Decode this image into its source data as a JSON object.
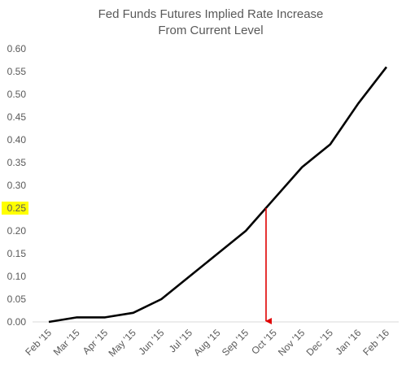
{
  "chart_data": {
    "type": "line",
    "title_line1": "Fed Funds Futures Implied Rate Increase",
    "title_line2": "From Current Level",
    "xlabel": "",
    "ylabel": "",
    "ylim": [
      0,
      0.6
    ],
    "y_ticks": [
      "0.00",
      "0.05",
      "0.10",
      "0.15",
      "0.20",
      "0.25",
      "0.30",
      "0.35",
      "0.40",
      "0.45",
      "0.50",
      "0.55",
      "0.60"
    ],
    "categories": [
      "Feb '15",
      "Mar '15",
      "Apr '15",
      "May '15",
      "Jun '15",
      "Jul '15",
      "Aug '15",
      "Sep '15",
      "Oct '15",
      "Nov '15",
      "Dec '15",
      "Jan '16",
      "Feb '16"
    ],
    "series": [
      {
        "values": [
          0.0,
          0.01,
          0.01,
          0.02,
          0.05,
          0.1,
          0.15,
          0.2,
          0.27,
          0.34,
          0.39,
          0.48,
          0.56
        ],
        "color": "#000000"
      }
    ],
    "grid": false,
    "legend": "none",
    "highlight_tick": {
      "label": "0.25",
      "value": 0.25,
      "background": "#ffff00"
    },
    "annotation_arrow": {
      "value": 0.25,
      "from_category_position": 7.72,
      "color": "#e00000"
    }
  }
}
